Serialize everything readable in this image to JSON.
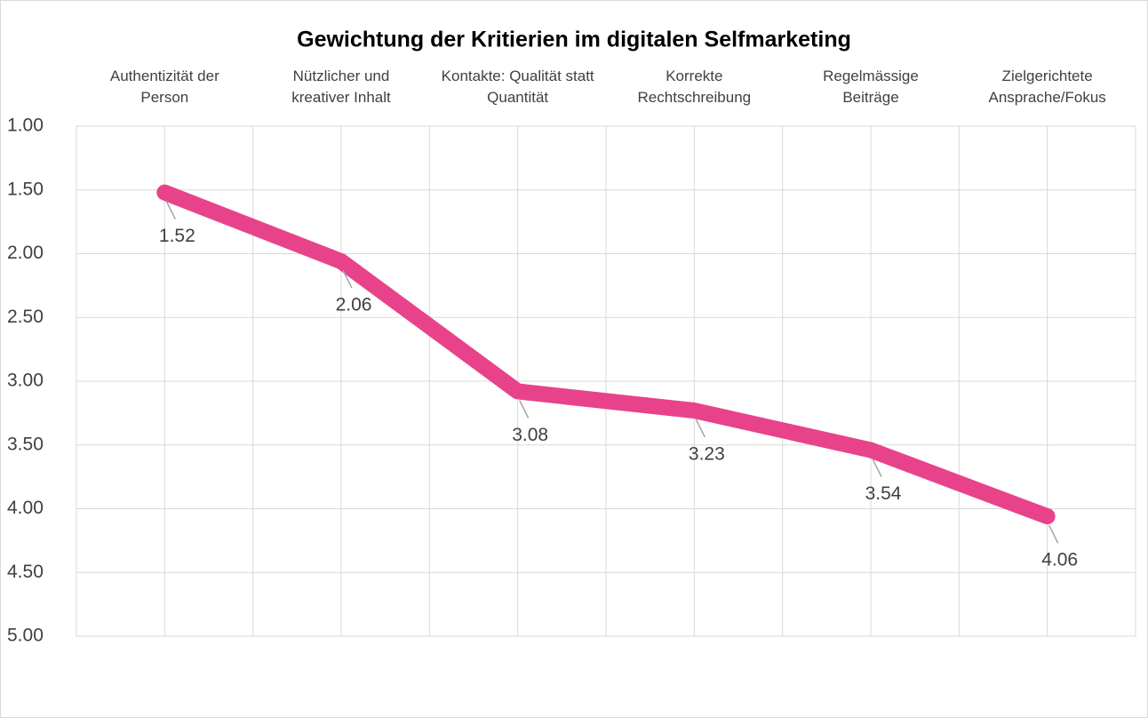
{
  "chart_data": {
    "type": "line",
    "title": "Gewichtung der Kritierien im digitalen Selfmarketing",
    "categories": [
      "Authentizität der Person",
      "Nützlicher und kreativer Inhalt",
      "Kontakte: Qualität statt Quantität",
      "Korrekte Rechtschreibung",
      "Regelmässige Beiträge",
      "Zielgerichtete Ansprache/Fokus"
    ],
    "values": [
      1.52,
      2.06,
      3.08,
      3.23,
      3.54,
      4.06
    ],
    "color": "#e8438a",
    "ylim": [
      1,
      5
    ],
    "y_inverted": true,
    "yticks": [
      {
        "value": 1,
        "label": "1.00"
      },
      {
        "value": 1.5,
        "label": "1.50"
      },
      {
        "value": 2,
        "label": "2.00"
      },
      {
        "value": 2.5,
        "label": "2.50"
      },
      {
        "value": 3,
        "label": "3.00"
      },
      {
        "value": 3.5,
        "label": "3.50"
      },
      {
        "value": 4,
        "label": "4.00"
      },
      {
        "value": 4.5,
        "label": "4.50"
      },
      {
        "value": 5,
        "label": "5.00"
      }
    ],
    "grid": true
  }
}
